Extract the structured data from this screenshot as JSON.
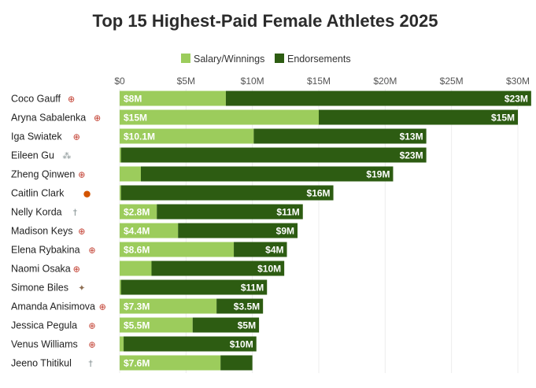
{
  "colors": {
    "salary": "#9ccc5c",
    "endorsements": "#2d5c12",
    "tennis_icon": "#c0392b",
    "basketball_icon": "#d35400",
    "golf_icon": "#7f8c8d",
    "gymnastics_icon": "#8e6e53",
    "ski_icon": "#7f8c8d"
  },
  "chart_data": {
    "type": "bar",
    "orientation": "horizontal",
    "stacked": true,
    "title": "Top 15 Highest-Paid Female Athletes 2025",
    "legend": {
      "position": "top-center",
      "items": [
        "Salary/Winnings",
        "Endorsements"
      ]
    },
    "x_axis": {
      "position": "top",
      "min": 0,
      "max": 30,
      "ticks": [
        0,
        5,
        10,
        15,
        20,
        25,
        30
      ],
      "tick_labels": [
        "$0",
        "$5M",
        "$10M",
        "$15M",
        "$20M",
        "$25M",
        "$30M"
      ]
    },
    "categories": [
      "Coco Gauff",
      "Aryna Sabalenka",
      "Iga Swiatek",
      "Eileen Gu",
      "Zheng Qinwen",
      "Caitlin Clark",
      "Nelly Korda",
      "Madison Keys",
      "Elena Rybakina",
      "Naomi Osaka",
      "Simone Biles",
      "Amanda Anisimova",
      "Jessica Pegula",
      "Venus Williams",
      "Jeeno Thitikul"
    ],
    "sport_icons": [
      "tennis-icon",
      "tennis-icon",
      "tennis-icon",
      "ski-icon",
      "tennis-icon",
      "basketball-icon",
      "golf-icon",
      "tennis-icon",
      "tennis-icon",
      "tennis-icon",
      "gymnastics-icon",
      "tennis-icon",
      "tennis-icon",
      "tennis-icon",
      "golf-icon"
    ],
    "series": [
      {
        "name": "Salary/Winnings",
        "values": [
          8,
          15,
          10.1,
          0.1,
          1.6,
          0.1,
          2.8,
          4.4,
          8.6,
          2.4,
          0.1,
          7.3,
          5.5,
          0.3,
          7.6
        ],
        "labels": [
          "$8M",
          "$15M",
          "$10.1M",
          "",
          "",
          "",
          "$2.8M",
          "$4.4M",
          "$8.6M",
          "",
          "",
          "$7.3M",
          "$5.5M",
          "",
          "$7.6M"
        ]
      },
      {
        "name": "Endorsements",
        "values": [
          23,
          15,
          13,
          23,
          19,
          16,
          11,
          9,
          4,
          10,
          11,
          3.5,
          5,
          10,
          2.4
        ],
        "labels": [
          "$23M",
          "$15M",
          "$13M",
          "$23M",
          "$19M",
          "$16M",
          "$11M",
          "$9M",
          "$4M",
          "$10M",
          "$11M",
          "$3.5M",
          "$5M",
          "$10M",
          ""
        ]
      }
    ]
  }
}
